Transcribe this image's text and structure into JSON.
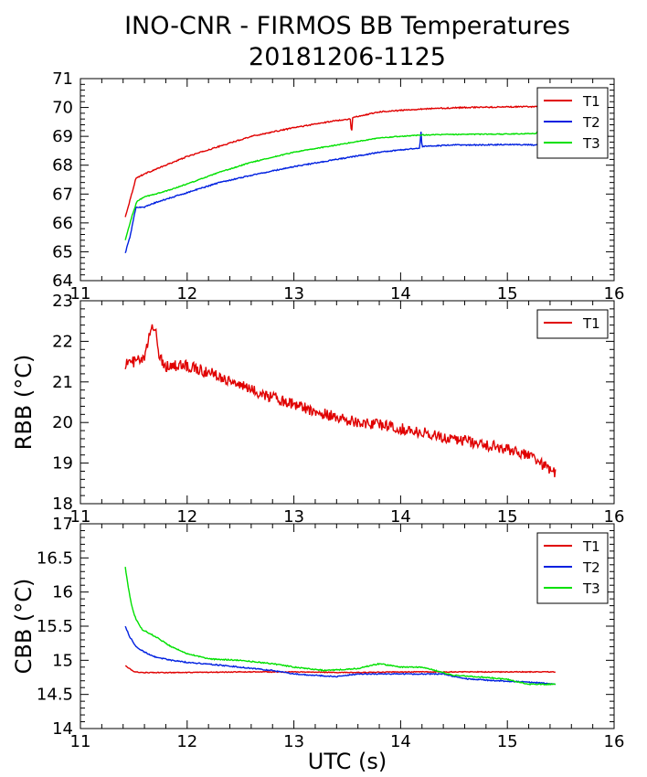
{
  "title": "INO-CNR - FIRMOS BB Temperatures",
  "subtitle": "20181206-1125",
  "xlabel": "UTC (s)",
  "chart_data": [
    {
      "type": "line",
      "ylabel": "",
      "xlim": [
        11,
        16
      ],
      "ylim": [
        64,
        71
      ],
      "xticks": [
        "11",
        "12",
        "13",
        "14",
        "15",
        "16"
      ],
      "yticks": [
        "64",
        "65",
        "66",
        "67",
        "68",
        "69",
        "70",
        "71"
      ],
      "legend_position": "top-right",
      "series": [
        {
          "name": "T1",
          "color": "#e00000",
          "noise": 0.02,
          "x": [
            11.42,
            11.48,
            11.52,
            11.6,
            11.8,
            12.0,
            12.3,
            12.6,
            13.0,
            13.4,
            13.53,
            13.54,
            13.55,
            13.8,
            14.2,
            14.6,
            15.0,
            15.3,
            15.45
          ],
          "y": [
            66.2,
            67.0,
            67.55,
            67.7,
            68.0,
            68.3,
            68.65,
            69.0,
            69.3,
            69.55,
            69.6,
            69.05,
            69.65,
            69.85,
            69.95,
            70.0,
            70.02,
            70.03,
            70.05
          ]
        },
        {
          "name": "T2",
          "color": "#0020e0",
          "noise": 0.02,
          "x": [
            11.42,
            11.47,
            11.52,
            11.6,
            11.7,
            12.0,
            12.3,
            12.6,
            13.0,
            13.4,
            13.8,
            14.18,
            14.19,
            14.2,
            14.5,
            14.8,
            15.0,
            15.3,
            15.45
          ],
          "y": [
            64.95,
            65.6,
            66.55,
            66.55,
            66.7,
            67.05,
            67.4,
            67.65,
            67.95,
            68.2,
            68.45,
            68.6,
            69.2,
            68.65,
            68.7,
            68.7,
            68.72,
            68.7,
            68.7
          ]
        },
        {
          "name": "T3",
          "color": "#00e000",
          "noise": 0.015,
          "x": [
            11.42,
            11.48,
            11.53,
            11.6,
            11.8,
            12.0,
            12.3,
            12.6,
            13.0,
            13.4,
            13.8,
            14.2,
            14.6,
            15.0,
            15.27,
            15.3,
            15.45
          ],
          "y": [
            65.4,
            66.2,
            66.75,
            66.9,
            67.1,
            67.35,
            67.75,
            68.1,
            68.45,
            68.7,
            68.95,
            69.05,
            69.07,
            69.08,
            69.1,
            69.3,
            69.2
          ]
        }
      ]
    },
    {
      "type": "line",
      "ylabel": "RBB (°C)",
      "xlim": [
        11,
        16
      ],
      "ylim": [
        18,
        23
      ],
      "xticks": [
        "11",
        "12",
        "13",
        "14",
        "15",
        "16"
      ],
      "yticks": [
        "18",
        "19",
        "20",
        "21",
        "22",
        "23"
      ],
      "legend_position": "top-right",
      "series": [
        {
          "name": "T1",
          "color": "#e00000",
          "noise": 0.14,
          "x": [
            11.42,
            11.5,
            11.6,
            11.66,
            11.7,
            11.74,
            11.8,
            12.0,
            12.3,
            12.6,
            13.0,
            13.3,
            13.6,
            13.8,
            14.0,
            14.3,
            14.6,
            14.9,
            15.2,
            15.4,
            15.45
          ],
          "y": [
            21.45,
            21.5,
            21.55,
            22.3,
            22.4,
            21.6,
            21.4,
            21.4,
            21.15,
            20.8,
            20.45,
            20.2,
            20.0,
            19.95,
            19.85,
            19.7,
            19.55,
            19.4,
            19.2,
            18.85,
            18.75
          ]
        }
      ]
    },
    {
      "type": "line",
      "ylabel": "CBB (°C)",
      "xlim": [
        11,
        16
      ],
      "ylim": [
        14,
        17
      ],
      "xticks": [
        "11",
        "12",
        "13",
        "14",
        "15",
        "16"
      ],
      "yticks": [
        "14",
        "14.5",
        "15",
        "15.5",
        "16",
        "16.5",
        "17"
      ],
      "legend_position": "top-right",
      "series": [
        {
          "name": "T1",
          "color": "#e00000",
          "noise": 0.006,
          "x": [
            11.42,
            11.46,
            11.5,
            11.6,
            12.0,
            12.5,
            13.0,
            13.5,
            14.0,
            14.5,
            15.0,
            15.45
          ],
          "y": [
            14.92,
            14.88,
            14.83,
            14.82,
            14.82,
            14.83,
            14.83,
            14.82,
            14.83,
            14.83,
            14.83,
            14.83
          ]
        },
        {
          "name": "T2",
          "color": "#0020e0",
          "noise": 0.008,
          "x": [
            11.42,
            11.46,
            11.52,
            11.6,
            11.7,
            11.85,
            12.0,
            12.3,
            12.8,
            13.0,
            13.4,
            13.6,
            14.0,
            14.4,
            14.6,
            14.9,
            15.2,
            15.45
          ],
          "y": [
            15.5,
            15.35,
            15.2,
            15.12,
            15.05,
            15.0,
            14.97,
            14.93,
            14.85,
            14.8,
            14.76,
            14.8,
            14.8,
            14.8,
            14.73,
            14.7,
            14.68,
            14.65
          ]
        },
        {
          "name": "T3",
          "color": "#00e000",
          "noise": 0.008,
          "x": [
            11.42,
            11.45,
            11.48,
            11.52,
            11.58,
            11.7,
            11.85,
            12.0,
            12.2,
            12.5,
            12.8,
            13.0,
            13.3,
            13.6,
            13.8,
            14.0,
            14.2,
            14.5,
            14.8,
            15.0,
            15.2,
            15.45
          ],
          "y": [
            16.37,
            16.05,
            15.8,
            15.6,
            15.45,
            15.35,
            15.2,
            15.1,
            15.02,
            15.0,
            14.95,
            14.9,
            14.85,
            14.88,
            14.95,
            14.9,
            14.9,
            14.78,
            14.75,
            14.72,
            14.65,
            14.65
          ]
        }
      ]
    }
  ]
}
